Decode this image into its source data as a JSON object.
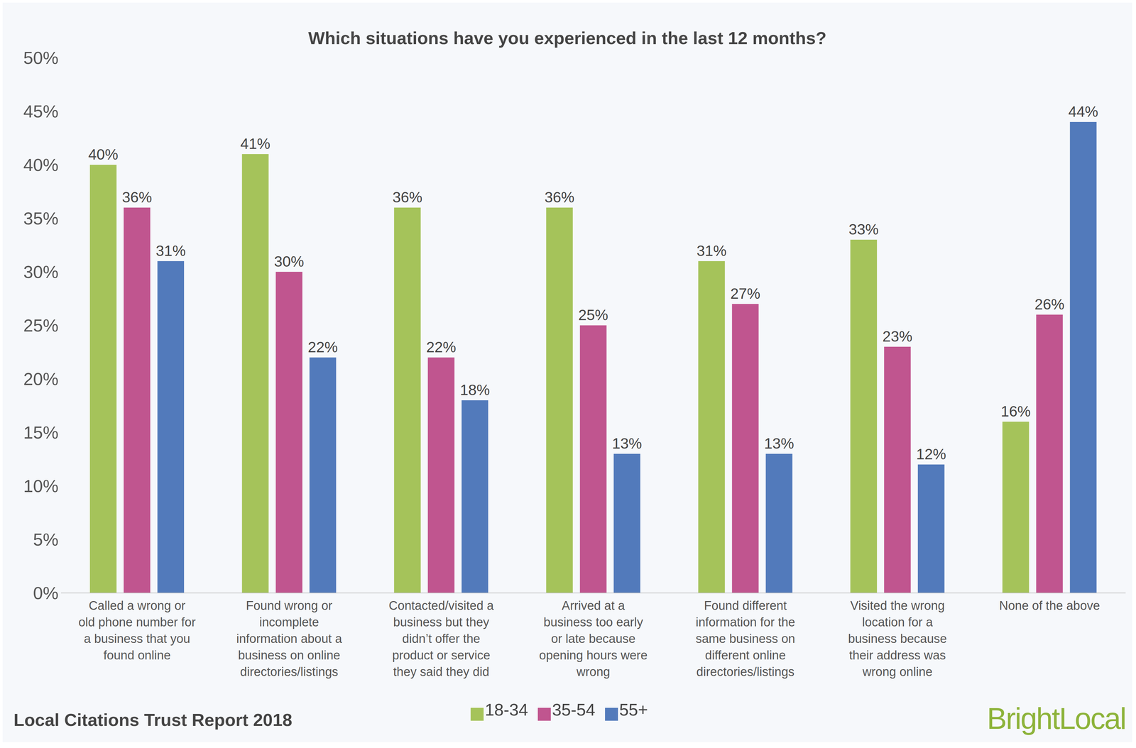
{
  "chart_data": {
    "type": "bar",
    "title": "Which situations have you experienced in the last 12 months?",
    "categories": [
      "Called a wrong or old phone number for a business that you found online",
      "Found wrong or incomplete information about a business on online directories/listings",
      "Contacted/visited a business but they didn’t offer the product or service they said they did",
      "Arrived at a business too early or late because opening hours were wrong",
      "Found different information for the same business on different online directories/listings",
      "Visited the wrong location for a business because their address was wrong online",
      "None of the above"
    ],
    "series": [
      {
        "name": "18-34",
        "color": "#a5c35a",
        "values": [
          40,
          41,
          36,
          36,
          31,
          33,
          16
        ],
        "value_labels": [
          "40%",
          "41%",
          "36%",
          "36%",
          "31%",
          "33%",
          "16%"
        ]
      },
      {
        "name": "35-54",
        "color": "#c0558f",
        "values": [
          36,
          30,
          22,
          25,
          27,
          23,
          26
        ],
        "value_labels": [
          "36%",
          "30%",
          "22%",
          "25%",
          "27%",
          "23%",
          "26%"
        ]
      },
      {
        "name": "55+",
        "color": "#527abb",
        "values": [
          31,
          22,
          18,
          13,
          13,
          12,
          44
        ],
        "value_labels": [
          "31%",
          "22%",
          "18%",
          "13%",
          "13%",
          "12%",
          "44%"
        ]
      }
    ],
    "ylim": [
      0,
      50
    ],
    "yticks": [
      {
        "value": 0,
        "label": "0%"
      },
      {
        "value": 5,
        "label": "5%"
      },
      {
        "value": 10,
        "label": "10%"
      },
      {
        "value": 15,
        "label": "15%"
      },
      {
        "value": 20,
        "label": "20%"
      },
      {
        "value": 25,
        "label": "25%"
      },
      {
        "value": 30,
        "label": "30%"
      },
      {
        "value": 35,
        "label": "35%"
      },
      {
        "value": 40,
        "label": "40%"
      },
      {
        "value": 45,
        "label": "45%"
      },
      {
        "value": 50,
        "label": "50%"
      }
    ],
    "grid": false,
    "legend": "bottom",
    "data_labels": true,
    "annotations": [
      "Local Citations Trust Report 2018",
      "BrightLocal"
    ]
  }
}
